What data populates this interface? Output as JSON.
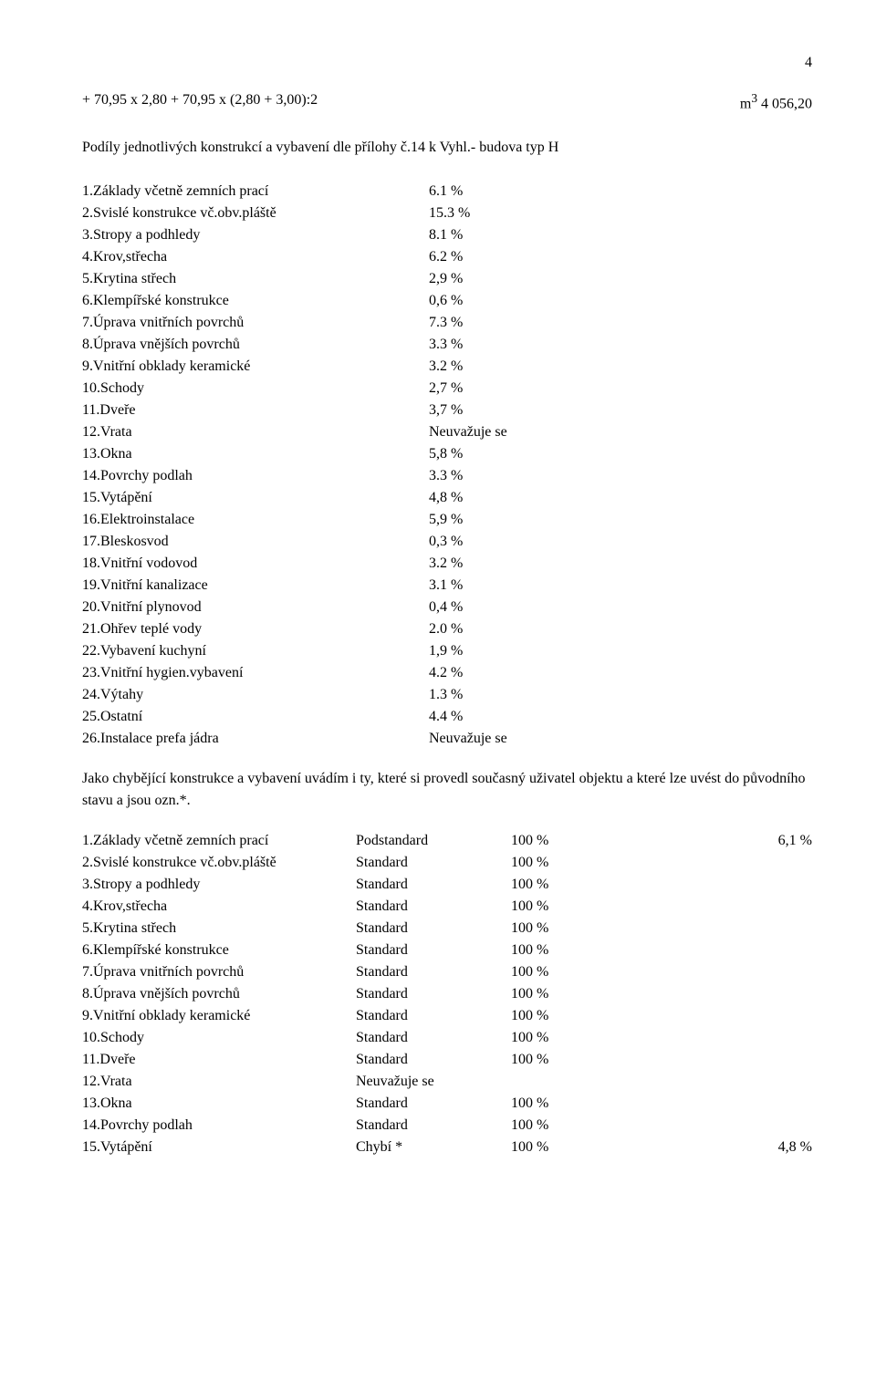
{
  "page_number": "4",
  "calc": {
    "lhs": "+ 70,95 x 2,80 + 70,95 x (2,80 + 3,00):2",
    "unit": "m",
    "exp": "3",
    "rhs": " 4 056,20"
  },
  "list_intro": "Podíly jednotlivých konstrukcí a vybavení dle přílohy č.14 k Vyhl.- budova typ H",
  "items": [
    {
      "label": "1.Základy včetně zemních prací",
      "value": "6.1 %"
    },
    {
      "label": "2.Svislé konstrukce vč.obv.pláště",
      "value": "15.3 %"
    },
    {
      "label": "3.Stropy a podhledy",
      "value": "8.1 %"
    },
    {
      "label": "4.Krov,střecha",
      "value": "6.2 %"
    },
    {
      "label": "5.Krytina střech",
      "value": "2,9 %"
    },
    {
      "label": "6.Klempířské konstrukce",
      "value": "0,6 %"
    },
    {
      "label": "7.Úprava vnitřních povrchů",
      "value": "7.3 %"
    },
    {
      "label": "8.Úprava vnějších povrchů",
      "value": "3.3 %"
    },
    {
      "label": "9.Vnitřní obklady keramické",
      "value": "3.2 %"
    },
    {
      "label": "10.Schody",
      "value": "2,7 %"
    },
    {
      "label": "11.Dveře",
      "value": "3,7 %"
    },
    {
      "label": "12.Vrata",
      "value": "Neuvažuje se"
    },
    {
      "label": "13.Okna",
      "value": "5,8 %"
    },
    {
      "label": "14.Povrchy podlah",
      "value": "3.3 %"
    },
    {
      "label": "15.Vytápění",
      "value": "4,8 %"
    },
    {
      "label": "16.Elektroinstalace",
      "value": "5,9 %"
    },
    {
      "label": "17.Bleskosvod",
      "value": "0,3 %"
    },
    {
      "label": "18.Vnitřní vodovod",
      "value": "3.2 %"
    },
    {
      "label": "19.Vnitřní kanalizace",
      "value": "3.1 %"
    },
    {
      "label": "20.Vnitřní plynovod",
      "value": "0,4 %"
    },
    {
      "label": "21.Ohřev teplé vody",
      "value": "2.0 %"
    },
    {
      "label": "22.Vybavení kuchyní",
      "value": "1,9 %"
    },
    {
      "label": "23.Vnitřní hygien.vybavení",
      "value": "4.2 %"
    },
    {
      "label": "24.Výtahy",
      "value": "1.3 %"
    },
    {
      "label": "25.Ostatní",
      "value": "4.4 %"
    },
    {
      "label": "26.Instalace prefa jádra",
      "value": "Neuvažuje se"
    }
  ],
  "middle_para": "Jako chybějící konstrukce a vybavení uvádím i ty, které si provedl současný uživatel objektu a které lze uvést do původního stavu a jsou ozn.*.",
  "details": [
    {
      "label": "1.Základy včetně zemních prací",
      "std": "Podstandard",
      "pct": "100 %",
      "extra": "6,1 %"
    },
    {
      "label": "2.Svislé konstrukce vč.obv.pláště",
      "std": "Standard",
      "pct": "100 %",
      "extra": ""
    },
    {
      "label": "3.Stropy a podhledy",
      "std": "Standard",
      "pct": "100 %",
      "extra": ""
    },
    {
      "label": "4.Krov,střecha",
      "std": "Standard",
      "pct": "100 %",
      "extra": ""
    },
    {
      "label": "5.Krytina střech",
      "std": "Standard",
      "pct": "100 %",
      "extra": ""
    },
    {
      "label": "6.Klempířské konstrukce",
      "std": "Standard",
      "pct": "100 %",
      "extra": ""
    },
    {
      "label": "7.Úprava vnitřních povrchů",
      "std": "Standard",
      "pct": "100 %",
      "extra": ""
    },
    {
      "label": "8.Úprava vnějších povrchů",
      "std": "Standard",
      "pct": "100 %",
      "extra": ""
    },
    {
      "label": "9.Vnitřní obklady keramické",
      "std": "Standard",
      "pct": "100 %",
      "extra": ""
    },
    {
      "label": "10.Schody",
      "std": "Standard",
      "pct": "100 %",
      "extra": ""
    },
    {
      "label": "11.Dveře",
      "std": "Standard",
      "pct": "100 %",
      "extra": ""
    },
    {
      "label": "12.Vrata",
      "std": "Neuvažuje se",
      "pct": "",
      "extra": ""
    },
    {
      "label": "13.Okna",
      "std": "Standard",
      "pct": "100 %",
      "extra": ""
    },
    {
      "label": "14.Povrchy podlah",
      "std": "Standard",
      "pct": "100 %",
      "extra": ""
    },
    {
      "label": "15.Vytápění",
      "std": "Chybí *",
      "pct": "100 %",
      "extra": "4,8 %"
    }
  ]
}
